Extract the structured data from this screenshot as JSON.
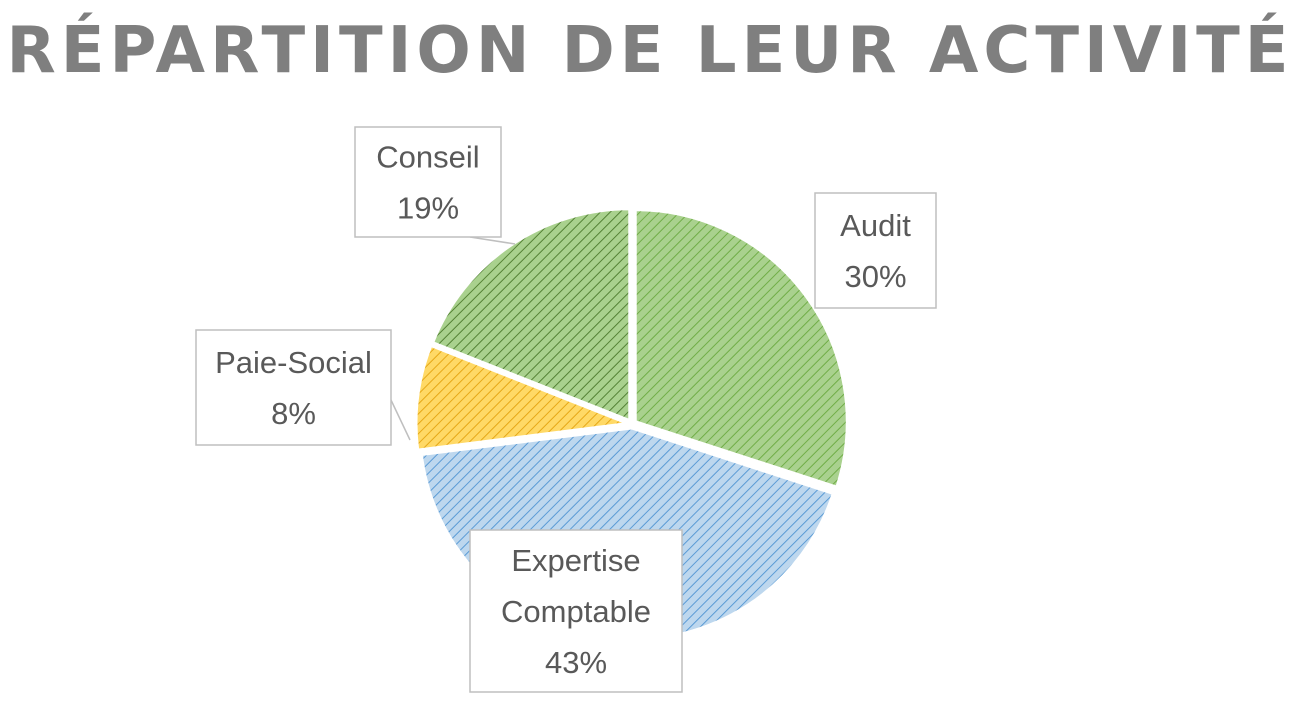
{
  "chart_data": {
    "type": "pie",
    "title": "RÉPARTITION DE LEUR ACTIVITÉ",
    "slices": [
      {
        "label": "Audit",
        "value": 30,
        "value_label": "30%",
        "color": "#a9d18e",
        "stripe": "#70ad47"
      },
      {
        "label": "Expertise Comptable",
        "value": 43,
        "value_label": "43%",
        "color": "#bdd7ee",
        "stripe": "#5b9bd5"
      },
      {
        "label": "Paie-Social",
        "value": 8,
        "value_label": "8%",
        "color": "#ffd966",
        "stripe": "#e6a817"
      },
      {
        "label": "Conseil",
        "value": 19,
        "value_label": "19%",
        "color": "#a9d18e",
        "stripe": "#548235"
      }
    ],
    "legend": "none",
    "data_labels": "callouts"
  }
}
